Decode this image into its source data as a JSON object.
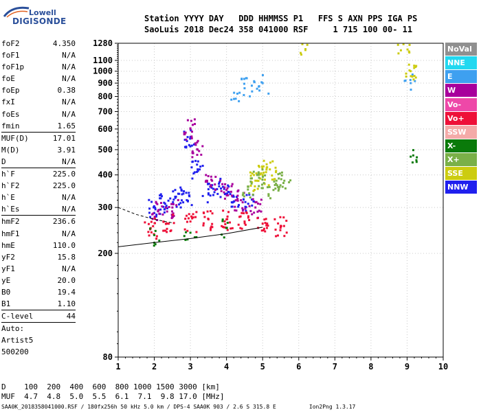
{
  "logo": {
    "line1": "Lowell",
    "line2": "DIGISONDE"
  },
  "header": {
    "line1": "Station YYYY DAY   DDD HHMMSS P1   FFS S AXN PPS IGA PS",
    "line2": "SaoLuis 2018 Dec24 358 041000 RSF     1 715 100 00- 11"
  },
  "params": [
    {
      "k": "foF2",
      "v": "4.350"
    },
    {
      "k": "foF1",
      "v": "N/A"
    },
    {
      "k": "foF1p",
      "v": "N/A"
    },
    {
      "k": "foE",
      "v": "N/A"
    },
    {
      "k": "foEp",
      "v": "0.38"
    },
    {
      "k": "fxI",
      "v": "N/A"
    },
    {
      "k": "foEs",
      "v": "N/A"
    },
    {
      "k": "fmin",
      "v": "1.65"
    },
    {
      "k": "MUF(D)",
      "v": "17.01"
    },
    {
      "k": "M(D)",
      "v": "3.91"
    },
    {
      "k": "D",
      "v": "N/A"
    },
    {
      "k": "h`F",
      "v": "225.0"
    },
    {
      "k": "h`F2",
      "v": "225.0"
    },
    {
      "k": "h`E",
      "v": "N/A"
    },
    {
      "k": "h`Es",
      "v": "N/A"
    },
    {
      "k": "hmF2",
      "v": "236.6"
    },
    {
      "k": "hmF1",
      "v": "N/A"
    },
    {
      "k": "hmE",
      "v": "110.0"
    },
    {
      "k": "yF2",
      "v": "15.8"
    },
    {
      "k": "yF1",
      "v": "N/A"
    },
    {
      "k": "yE",
      "v": "20.0"
    },
    {
      "k": "B0",
      "v": "19.4"
    },
    {
      "k": "B1",
      "v": "1.10"
    },
    {
      "k": "C-level",
      "v": "44"
    }
  ],
  "auto": [
    "Auto:",
    "Artist5",
    "500200"
  ],
  "footer": {
    "d_row": "D    100  200  400  600  800 1000 1500 3000 [km]",
    "muf_row": "MUF  4.7  4.8  5.0  5.5  6.1  7.1  9.8 17.0 [MHz]",
    "bottom": "SAA0K_2018358041000.RSF / 180fx256h 50 kHz 5.0 km / DPS-4 SAA0K 903 / 2.6 S 315.8 E          Ion2Png 1.3.17"
  },
  "legend": [
    {
      "label": "NoVal",
      "color": "#909090"
    },
    {
      "label": "NNE",
      "color": "#22d8f0"
    },
    {
      "label": "E",
      "color": "#3ea0f0"
    },
    {
      "label": "W",
      "color": "#a8009c"
    },
    {
      "label": "Vo-",
      "color": "#ee48a8"
    },
    {
      "label": "Vo+",
      "color": "#ee1038"
    },
    {
      "label": "SSW",
      "color": "#f4aaa8"
    },
    {
      "label": "X-",
      "color": "#0a7a0a"
    },
    {
      "label": "X+",
      "color": "#7ab048"
    },
    {
      "label": "SSE",
      "color": "#cccc10"
    },
    {
      "label": "NNW",
      "color": "#2020ee"
    }
  ],
  "chart_data": {
    "type": "scatter",
    "x_ticks": [
      1,
      2,
      3,
      4,
      5,
      6,
      7,
      8,
      9,
      10
    ],
    "y_ticks": [
      80,
      200,
      300,
      400,
      500,
      600,
      700,
      800,
      900,
      1000,
      1100,
      1280
    ],
    "xlim": [
      1,
      10
    ],
    "ylim": [
      80,
      1280
    ],
    "x_scale": "linear",
    "y_scale": "log",
    "grid": true,
    "series": [
      {
        "name": "NNW",
        "points": [
          [
            2.0,
            300
          ],
          [
            2.3,
            310
          ],
          [
            2.6,
            330
          ],
          [
            2.9,
            320
          ],
          [
            3.0,
            560
          ],
          [
            3.2,
            420
          ],
          [
            3.5,
            340
          ],
          [
            3.9,
            360
          ],
          [
            4.2,
            330
          ],
          [
            4.6,
            310
          ]
        ]
      },
      {
        "name": "W",
        "points": [
          [
            2.1,
            290
          ],
          [
            2.5,
            300
          ],
          [
            3.0,
            600
          ],
          [
            3.2,
            500
          ],
          [
            3.6,
            380
          ],
          [
            4.0,
            350
          ],
          [
            4.4,
            320
          ],
          [
            4.8,
            300
          ]
        ]
      },
      {
        "name": "Vo+",
        "points": [
          [
            1.9,
            250
          ],
          [
            2.4,
            260
          ],
          [
            3.0,
            265
          ],
          [
            3.5,
            270
          ],
          [
            4.0,
            270
          ],
          [
            4.5,
            265
          ],
          [
            5.0,
            260
          ],
          [
            5.5,
            255
          ]
        ]
      },
      {
        "name": "E",
        "points": [
          [
            4.3,
            820
          ],
          [
            4.5,
            860
          ],
          [
            4.7,
            880
          ],
          [
            5.0,
            900
          ],
          [
            9.1,
            900
          ]
        ]
      },
      {
        "name": "SSE",
        "points": [
          [
            4.8,
            380
          ],
          [
            5.0,
            400
          ],
          [
            5.2,
            420
          ],
          [
            6.1,
            1270
          ],
          [
            8.9,
            1270
          ],
          [
            9.1,
            1000
          ]
        ]
      },
      {
        "name": "X-",
        "points": [
          [
            2.0,
            235
          ],
          [
            3.0,
            240
          ],
          [
            4.0,
            250
          ],
          [
            9.1,
            470
          ]
        ]
      },
      {
        "name": "X+",
        "points": [
          [
            4.6,
            360
          ],
          [
            4.9,
            390
          ],
          [
            5.3,
            350
          ],
          [
            5.6,
            380
          ]
        ]
      }
    ],
    "fitted_curves": [
      {
        "name": "h`F trace",
        "points": [
          [
            1,
            212
          ],
          [
            2,
            220
          ],
          [
            3,
            228
          ],
          [
            4,
            238
          ],
          [
            5,
            252
          ]
        ]
      },
      {
        "name": "upper dashed",
        "points": [
          [
            1,
            300
          ],
          [
            1.5,
            282
          ],
          [
            2,
            270
          ],
          [
            2.5,
            262
          ]
        ]
      }
    ]
  }
}
